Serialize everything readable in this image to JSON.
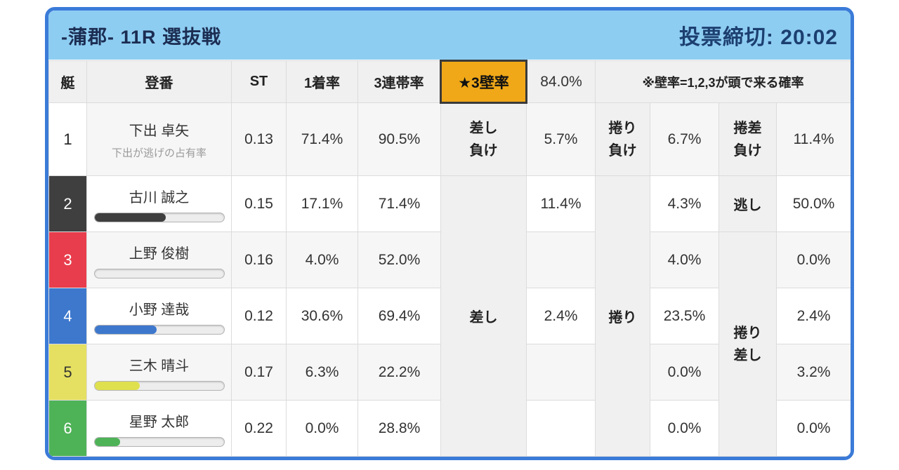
{
  "header": {
    "race_title": "-蒲郡- 11R 選抜戦",
    "vote_deadline": "投票締切: 20:02"
  },
  "table": {
    "columns": {
      "boat": "艇",
      "entry": "登番",
      "st": "ST",
      "win_rate": "1着率",
      "top3_rate": "3連帯率",
      "wall_rate": "★3壁率",
      "wall_rate_value": "84.0%",
      "wall_note": "※壁率=1,2,3が頭で来る確率"
    },
    "merged": {
      "sashi": "差し",
      "makuri": "捲り",
      "makuri_sashi": "捲り差し"
    },
    "rows": [
      {
        "boat": "1",
        "name": "下出 卓矢",
        "sub": "下出が逃げの占有率",
        "st": "0.13",
        "win_rate": "71.4%",
        "top3_rate": "90.5%",
        "sashi_label": "差し負け",
        "sashi_pct": "5.7%",
        "makuri_label": "捲り負け",
        "makuri_pct": "6.7%",
        "third_label": "捲差負け",
        "third_pct": "11.4%"
      },
      {
        "boat": "2",
        "name": "古川 誠之",
        "bar_pct": 55,
        "st": "0.15",
        "win_rate": "17.1%",
        "top3_rate": "71.4%",
        "sashi_pct": "11.4%",
        "makuri_pct": "4.3%",
        "third_label": "逃し",
        "third_pct": "50.0%"
      },
      {
        "boat": "3",
        "name": "上野 俊樹",
        "bar_pct": 0,
        "st": "0.16",
        "win_rate": "4.0%",
        "top3_rate": "52.0%",
        "sashi_pct": "",
        "makuri_pct": "4.0%",
        "third_pct": "0.0%"
      },
      {
        "boat": "4",
        "name": "小野 達哉",
        "bar_pct": 48,
        "st": "0.12",
        "win_rate": "30.6%",
        "top3_rate": "69.4%",
        "sashi_pct": "2.4%",
        "makuri_pct": "23.5%",
        "third_pct": "2.4%"
      },
      {
        "boat": "5",
        "name": "三木 晴斗",
        "bar_pct": 35,
        "st": "0.17",
        "win_rate": "6.3%",
        "top3_rate": "22.2%",
        "sashi_pct": "",
        "makuri_pct": "0.0%",
        "third_pct": "3.2%"
      },
      {
        "boat": "6",
        "name": "星野 太郎",
        "bar_pct": 20,
        "st": "0.22",
        "win_rate": "0.0%",
        "top3_rate": "28.8%",
        "sashi_pct": "",
        "makuri_pct": "0.0%",
        "third_pct": "0.0%"
      }
    ]
  },
  "colors": {
    "frame": "#3b7bd8",
    "topbar_bg": "#8ecdf2",
    "wall_highlight_bg": "#f0a818",
    "boat_colors": [
      "#ffffff",
      "#3f3f3f",
      "#e83d4c",
      "#3d78cd",
      "#e5e061",
      "#4eb257"
    ]
  }
}
